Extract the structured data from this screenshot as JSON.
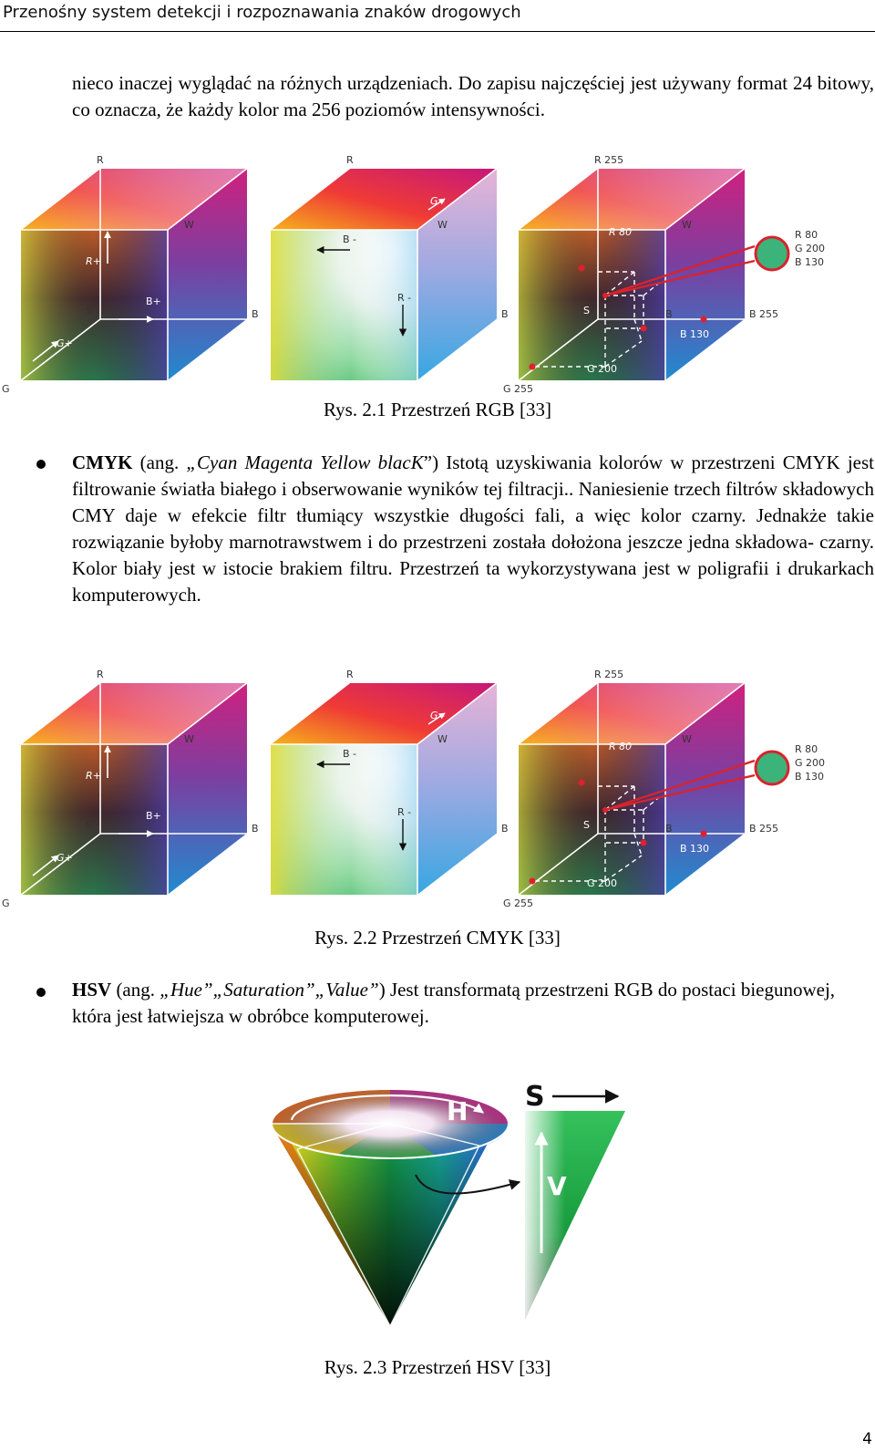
{
  "header": {
    "title": "Przenośny system detekcji i rozpoznawania znaków drogowych"
  },
  "intro": {
    "text": "nieco inaczej wyglądać na różnych urządzeniach. Do zapisu najczęściej jest używany format 24 bitowy, co oznacza, że każdy kolor ma 256 poziomów intensywności."
  },
  "cube_labels": {
    "r": "R",
    "g": "G",
    "b": "B",
    "w": "W",
    "s": "S",
    "r_plus": "R+",
    "g_plus": "G+",
    "b_plus": "B+",
    "b_minus": "B -",
    "r_minus": "R -",
    "g_minus": "G -",
    "r255": "R 255",
    "g255": "G 255",
    "b255": "B 255",
    "r80": "R 80",
    "g200": "G 200",
    "b130": "B 130"
  },
  "figures": {
    "fig1_caption": "Rys. 2.1 Przestrzeń RGB [33]",
    "fig2_caption": "Rys. 2.2 Przestrzeń CMYK [33]",
    "fig3_caption": "Rys. 2.3 Przestrzeń HSV [33]"
  },
  "cmyk": {
    "term": "CMYK",
    "ang": "(ang.",
    "open_quote": "„",
    "name": "Cyan Magenta Yellow blacK",
    "close": "”)",
    "body": "Istotą uzyskiwania kolorów w przestrzeni CMYK jest filtrowanie światła białego i obserwowanie wyników tej filtracji.. Naniesienie trzech filtrów składowych CMY daje w efekcie filtr tłumiący wszystkie długości fali, a więc kolor czarny. Jednakże takie rozwiązanie byłoby marnotrawstwem i do przestrzeni została dołożona jeszcze jedna składowa- czarny. Kolor biały jest w istocie brakiem filtru. Przestrzeń ta wykorzystywana jest w poligrafii i drukarkach komputerowych."
  },
  "hsv": {
    "term": "HSV",
    "ang": "(ang.",
    "hue": "„Hue”",
    "saturation": "„Saturation”",
    "value": "„Value”",
    "close": ")",
    "body": "Jest transformatą przestrzeni RGB do postaci biegunowej, która jest łatwiejsza w obróbce komputerowej.",
    "label_h": "H",
    "label_s": "S",
    "label_v": "V"
  },
  "colors": {
    "sample_swatch": "#3cb37a",
    "pointer_line": "#d9232d",
    "arrow": "#ffffff"
  },
  "page_number": "4"
}
